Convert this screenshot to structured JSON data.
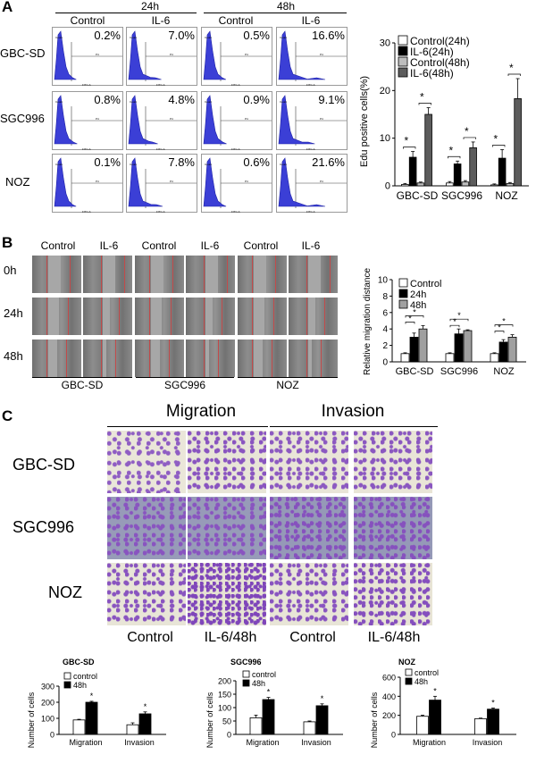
{
  "panel_a": {
    "label": "A",
    "timepoints": [
      "24h",
      "48h"
    ],
    "columns": [
      "Control",
      "IL-6",
      "Control",
      "IL-6"
    ],
    "rows": [
      {
        "name": "GBC-SD",
        "values": [
          "0.2%",
          "7.0%",
          "0.5%",
          "16.6%"
        ]
      },
      {
        "name": "SGC996",
        "values": [
          "0.8%",
          "4.8%",
          "0.9%",
          "9.1%"
        ]
      },
      {
        "name": "NOZ",
        "values": [
          "0.1%",
          "7.8%",
          "0.6%",
          "21.6%"
        ]
      }
    ],
    "gate_label": "P4",
    "axis_label": "FITC-A",
    "y_axis_label": "Count",
    "hist_color": "#3b3fd6"
  },
  "panel_b": {
    "label": "B",
    "columns": [
      "Control",
      "IL-6",
      "Control",
      "IL-6",
      "Control",
      "IL-6"
    ],
    "rows": [
      "0h",
      "24h",
      "48h"
    ],
    "groups": [
      "GBC-SD",
      "SGC996",
      "NOZ"
    ]
  },
  "panel_c": {
    "label": "C",
    "headers": [
      "Migration",
      "Invasion"
    ],
    "rows": [
      "GBC-SD",
      "SGC996",
      "NOZ"
    ],
    "columns": [
      "Control",
      "IL-6/48h",
      "Control",
      "IL-6/48h"
    ],
    "stain_color": "#7a3fb8"
  },
  "chart_data": [
    {
      "id": "edu",
      "type": "bar",
      "ylabel": "Edu positive cells(%)",
      "categories": [
        "GBC-SD",
        "SGC996",
        "NOZ"
      ],
      "ylim": [
        0,
        30
      ],
      "yticks": [
        0,
        10,
        20,
        30
      ],
      "legend_position": "top-right",
      "series": [
        {
          "name": "Control(24h)",
          "color": "#ffffff",
          "values": [
            0.3,
            0.6,
            0.2
          ],
          "errors": [
            0.2,
            0.3,
            0.2
          ]
        },
        {
          "name": "IL-6(24h)",
          "color": "#000000",
          "values": [
            6.0,
            4.6,
            5.8
          ],
          "errors": [
            1.2,
            0.6,
            1.8
          ]
        },
        {
          "name": "Control(48h)",
          "color": "#bdbdbd",
          "values": [
            0.6,
            0.8,
            0.5
          ],
          "errors": [
            0.2,
            0.3,
            0.2
          ]
        },
        {
          "name": "IL-6(48h)",
          "color": "#5c5c5c",
          "values": [
            15.0,
            8.0,
            18.3
          ],
          "errors": [
            1.4,
            1.2,
            4.2
          ]
        }
      ],
      "annotations": [
        "*",
        "*",
        "*",
        "*",
        "*",
        "*",
        "*",
        "*",
        "*"
      ]
    },
    {
      "id": "migration_distance",
      "type": "bar",
      "ylabel": "Relative migration distance",
      "categories": [
        "GBC-SD",
        "SGC996",
        "NOZ"
      ],
      "ylim": [
        0,
        10
      ],
      "yticks": [
        0,
        2,
        4,
        6,
        8,
        10
      ],
      "legend_position": "top-right",
      "series": [
        {
          "name": "Control",
          "color": "#ffffff",
          "values": [
            1.0,
            1.0,
            1.0
          ],
          "errors": [
            0.1,
            0.1,
            0.1
          ]
        },
        {
          "name": "24h",
          "color": "#000000",
          "values": [
            3.0,
            3.4,
            2.4
          ],
          "errors": [
            0.5,
            0.6,
            0.3
          ]
        },
        {
          "name": "48h",
          "color": "#a0a0a0",
          "values": [
            4.0,
            3.8,
            3.0
          ],
          "errors": [
            0.4,
            0.1,
            0.3
          ]
        }
      ],
      "annotations": [
        "*",
        "*",
        "*",
        "*",
        "*",
        "*"
      ]
    },
    {
      "id": "gbcsd_cells",
      "type": "bar",
      "title": "GBC-SD",
      "ylabel": "Number of cells",
      "categories": [
        "Migration",
        "Invasion"
      ],
      "ylim": [
        0,
        300
      ],
      "yticks": [
        0,
        100,
        200,
        300
      ],
      "legend_position": "top-left",
      "series": [
        {
          "name": "control",
          "color": "#ffffff",
          "values": [
            90,
            60
          ],
          "errors": [
            4,
            12
          ]
        },
        {
          "name": "48h",
          "color": "#000000",
          "values": [
            200,
            128
          ],
          "errors": [
            6,
            12
          ]
        }
      ],
      "annotations": [
        "*",
        "*"
      ]
    },
    {
      "id": "sgc996_cells",
      "type": "bar",
      "title": "SGC996",
      "ylabel": "Number of cells",
      "categories": [
        "Migration",
        "Invasion"
      ],
      "ylim": [
        0,
        200
      ],
      "yticks": [
        0,
        50,
        100,
        150,
        200
      ],
      "legend_position": "top-left",
      "series": [
        {
          "name": "control",
          "color": "#ffffff",
          "values": [
            62,
            47
          ],
          "errors": [
            10,
            3
          ]
        },
        {
          "name": "48h",
          "color": "#000000",
          "values": [
            130,
            107
          ],
          "errors": [
            8,
            7
          ]
        }
      ],
      "annotations": [
        "*",
        "*"
      ]
    },
    {
      "id": "noz_cells",
      "type": "bar",
      "title": "NOZ",
      "ylabel": "Number of cells",
      "categories": [
        "Migration",
        "Invasion"
      ],
      "ylim": [
        0,
        600
      ],
      "yticks": [
        0,
        200,
        400,
        600
      ],
      "legend_position": "top-left",
      "series": [
        {
          "name": "control",
          "color": "#ffffff",
          "values": [
            190,
            165
          ],
          "errors": [
            12,
            6
          ]
        },
        {
          "name": "48h",
          "color": "#000000",
          "values": [
            360,
            265
          ],
          "errors": [
            40,
            12
          ]
        }
      ],
      "annotations": [
        "*",
        "*"
      ]
    }
  ]
}
